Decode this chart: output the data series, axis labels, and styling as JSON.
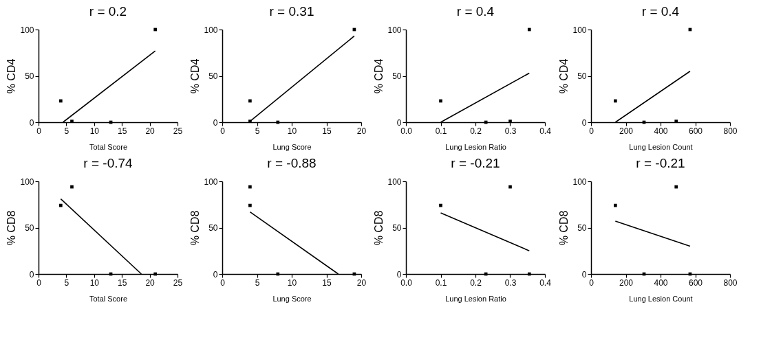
{
  "chart_data": [
    {
      "type": "scatter",
      "title": "r = 0.2",
      "xlabel": "Total Score",
      "ylabel": "% CD4",
      "xlim": [
        0,
        25
      ],
      "xticks": [
        0,
        5,
        10,
        15,
        20,
        25
      ],
      "ylim": [
        0,
        100
      ],
      "yticks": [
        0,
        50,
        100
      ],
      "grid": false,
      "series": [
        {
          "type": "scatter",
          "marker": "square",
          "color": "#000000",
          "x": [
            4,
            6,
            13,
            21
          ],
          "values": [
            23,
            1,
            0,
            100
          ]
        },
        {
          "type": "line",
          "marker": "none",
          "color": "#000000",
          "x": [
            4.4,
            21
          ],
          "values": [
            0,
            77
          ]
        }
      ]
    },
    {
      "type": "scatter",
      "title": "r = 0.31",
      "xlabel": "Lung Score",
      "ylabel": "% CD4",
      "xlim": [
        0,
        20
      ],
      "xticks": [
        0,
        5,
        10,
        15,
        20
      ],
      "ylim": [
        0,
        100
      ],
      "yticks": [
        0,
        50,
        100
      ],
      "grid": false,
      "series": [
        {
          "type": "scatter",
          "marker": "square",
          "color": "#000000",
          "x": [
            4,
            4,
            8,
            19
          ],
          "values": [
            23,
            1,
            0,
            100
          ]
        },
        {
          "type": "line",
          "marker": "none",
          "color": "#000000",
          "x": [
            4,
            19
          ],
          "values": [
            1,
            93
          ]
        }
      ]
    },
    {
      "type": "scatter",
      "title": "r = 0.4",
      "xlabel": "Lung Lesion Ratio",
      "ylabel": "% CD4",
      "xlim": [
        0,
        0.4
      ],
      "xticks": [
        {
          "value": 0,
          "label": "0.0"
        },
        0.1,
        0.2,
        0.3,
        0.4
      ],
      "ylim": [
        0,
        100
      ],
      "yticks": [
        0,
        50,
        100
      ],
      "grid": false,
      "series": [
        {
          "type": "scatter",
          "marker": "square",
          "color": "#000000",
          "x": [
            0.1,
            0.23,
            0.3,
            0.355
          ],
          "values": [
            23,
            0,
            1,
            100
          ]
        },
        {
          "type": "line",
          "marker": "none",
          "color": "#000000",
          "x": [
            0.1,
            0.355
          ],
          "values": [
            0,
            53
          ]
        }
      ]
    },
    {
      "type": "scatter",
      "title": "r = 0.4",
      "xlabel": "Lung Lesion Count",
      "ylabel": "% CD4",
      "xlim": [
        0,
        800
      ],
      "xticks": [
        0,
        200,
        400,
        600,
        800
      ],
      "ylim": [
        0,
        100
      ],
      "yticks": [
        0,
        50,
        100
      ],
      "grid": false,
      "series": [
        {
          "type": "scatter",
          "marker": "square",
          "color": "#000000",
          "x": [
            140,
            305,
            490,
            570
          ],
          "values": [
            23,
            0,
            1,
            100
          ]
        },
        {
          "type": "line",
          "marker": "none",
          "color": "#000000",
          "x": [
            140,
            570
          ],
          "values": [
            0,
            55
          ]
        }
      ]
    },
    {
      "type": "scatter",
      "title": "r = -0.74",
      "xlabel": "Total Score",
      "ylabel": "% CD8",
      "xlim": [
        0,
        25
      ],
      "xticks": [
        0,
        5,
        10,
        15,
        20,
        25
      ],
      "ylim": [
        0,
        100
      ],
      "yticks": [
        0,
        50,
        100
      ],
      "grid": false,
      "series": [
        {
          "type": "scatter",
          "marker": "square",
          "color": "#000000",
          "x": [
            4,
            6,
            13,
            21
          ],
          "values": [
            74,
            94,
            0,
            0
          ]
        },
        {
          "type": "line",
          "marker": "none",
          "color": "#000000",
          "x": [
            4,
            18.5
          ],
          "values": [
            81,
            0
          ]
        }
      ]
    },
    {
      "type": "scatter",
      "title": "r = -0.88",
      "xlabel": "Lung Score",
      "ylabel": "% CD8",
      "xlim": [
        0,
        20
      ],
      "xticks": [
        0,
        5,
        10,
        15,
        20
      ],
      "ylim": [
        0,
        100
      ],
      "yticks": [
        0,
        50,
        100
      ],
      "grid": false,
      "series": [
        {
          "type": "scatter",
          "marker": "square",
          "color": "#000000",
          "x": [
            4,
            4,
            8,
            19
          ],
          "values": [
            94,
            74,
            0,
            0
          ]
        },
        {
          "type": "line",
          "marker": "none",
          "color": "#000000",
          "x": [
            4,
            16.7
          ],
          "values": [
            67,
            0
          ]
        }
      ]
    },
    {
      "type": "scatter",
      "title": "r = -0.21",
      "xlabel": "Lung Lesion Ratio",
      "ylabel": "% CD8",
      "xlim": [
        0,
        0.4
      ],
      "xticks": [
        {
          "value": 0,
          "label": "0.0"
        },
        0.1,
        0.2,
        0.3,
        0.4
      ],
      "ylim": [
        0,
        100
      ],
      "yticks": [
        0,
        50,
        100
      ],
      "grid": false,
      "series": [
        {
          "type": "scatter",
          "marker": "square",
          "color": "#000000",
          "x": [
            0.1,
            0.3,
            0.23,
            0.355
          ],
          "values": [
            74,
            94,
            0,
            0
          ]
        },
        {
          "type": "line",
          "marker": "none",
          "color": "#000000",
          "x": [
            0.1,
            0.355
          ],
          "values": [
            66,
            25
          ]
        }
      ]
    },
    {
      "type": "scatter",
      "title": "r = -0.21",
      "xlabel": "Lung Lesion Count",
      "ylabel": "% CD8",
      "xlim": [
        0,
        800
      ],
      "xticks": [
        0,
        200,
        400,
        600,
        800
      ],
      "ylim": [
        0,
        100
      ],
      "yticks": [
        0,
        50,
        100
      ],
      "grid": false,
      "series": [
        {
          "type": "scatter",
          "marker": "square",
          "color": "#000000",
          "x": [
            140,
            490,
            305,
            570
          ],
          "values": [
            74,
            94,
            0,
            0
          ]
        },
        {
          "type": "line",
          "marker": "none",
          "color": "#000000",
          "x": [
            140,
            570
          ],
          "values": [
            57,
            30
          ]
        }
      ]
    }
  ]
}
